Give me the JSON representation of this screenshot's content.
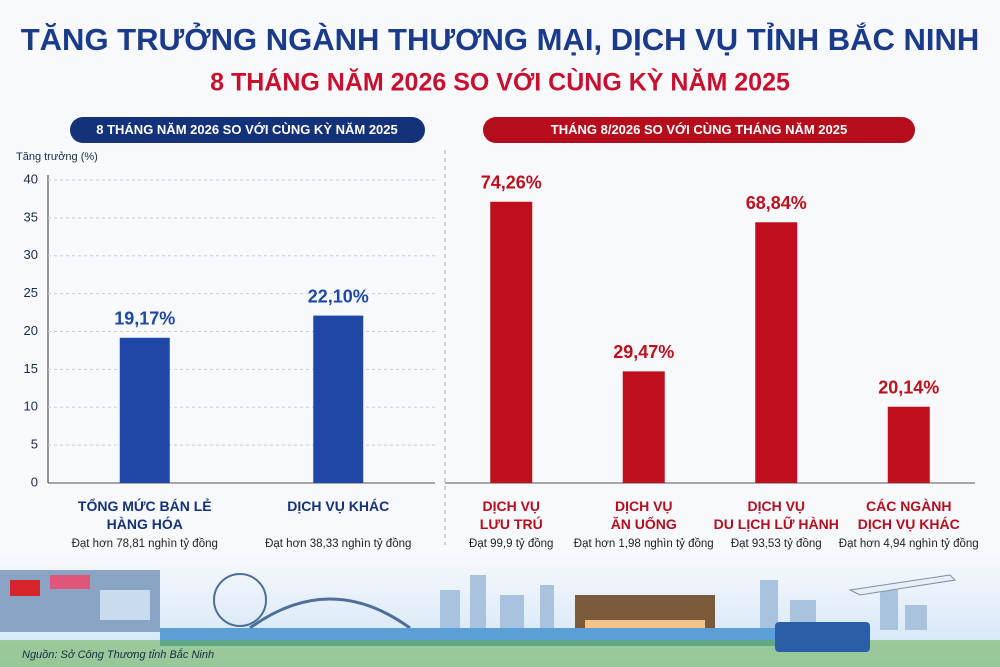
{
  "header": {
    "title": "TĂNG TRƯỞNG NGÀNH THƯƠNG MẠI, DỊCH VỤ TỈNH BẮC NINH",
    "subtitle": "8 THÁNG NĂM 2026 SO VỚI CÙNG KỲ NĂM 2025"
  },
  "chart_data": [
    {
      "type": "bar",
      "title": "8 THÁNG NĂM 2026 SO VỚI CÙNG KỲ NĂM 2025",
      "y_label": "Tăng trưởng (%)",
      "categories": [
        "TỔNG MỨC BÁN LẺ\nHÀNG HÓA",
        "DỊCH VỤ KHÁC"
      ],
      "values": [
        19.17,
        22.1
      ],
      "value_labels": [
        "19,17%",
        "22,10%"
      ],
      "notes": [
        "Đạt hơn 78,81 nghìn tỷ đồng",
        "Đạt hơn 38,33 nghìn tỷ đồng"
      ],
      "color": "#1f47a6",
      "ylim": [
        0,
        40
      ],
      "yticks": [
        0,
        5,
        10,
        15,
        20,
        25,
        30,
        35,
        40
      ],
      "grid": true
    },
    {
      "type": "bar",
      "title": "THÁNG 8/2026 SO VỚI CÙNG THÁNG NĂM 2025",
      "categories": [
        "DỊCH VỤ\nLƯU TRÚ",
        "DỊCH VỤ\nĂN UỐNG",
        "DỊCH VỤ\nDU LỊCH LỮ HÀNH",
        "CÁC NGÀNH\nDỊCH VỤ KHÁC"
      ],
      "values": [
        74.26,
        29.47,
        68.84,
        20.14
      ],
      "value_labels": [
        "74,26%",
        "29,47%",
        "68,84%",
        "20,14%"
      ],
      "notes": [
        "Đạt 99,9 tỷ đồng",
        "Đạt hơn 1,98 nghìn tỷ đồng",
        "Đạt 93,53 tỷ đồng",
        "Đạt hơn 4,94 nghìn tỷ đồng"
      ],
      "color": "#c00f1c",
      "ylim": [
        0,
        80
      ]
    }
  ],
  "source": "Nguồn: Sở Công Thương tỉnh Bắc Ninh"
}
